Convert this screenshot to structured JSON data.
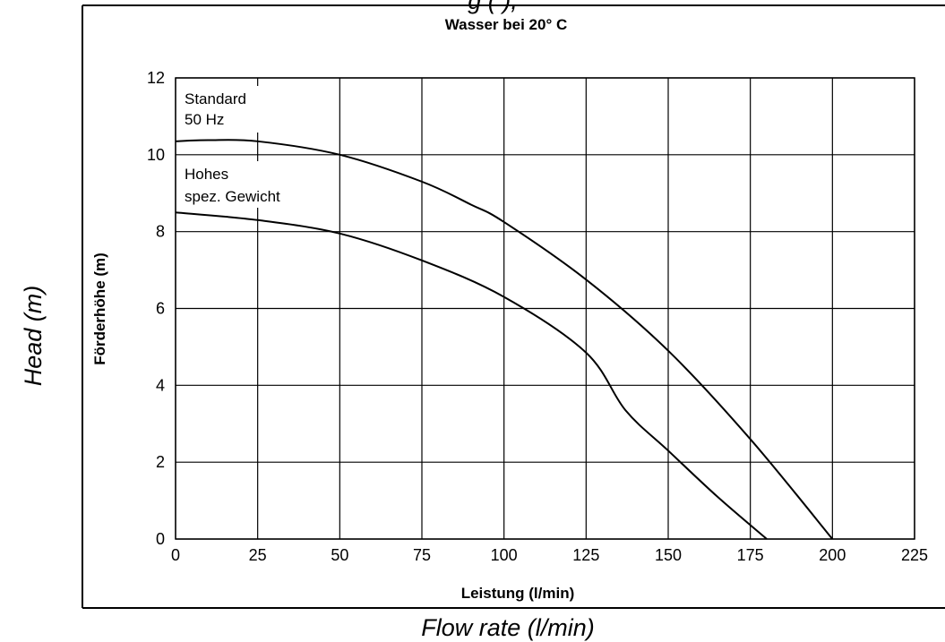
{
  "outer_labels": {
    "top_partial": "g        ( ),",
    "y_label": "Head (m)",
    "x_label": "Flow rate (l/min)"
  },
  "chart_data": {
    "type": "line",
    "title": "Wasser bei 20° C",
    "xlabel": "Leistung (l/min)",
    "ylabel": "Förderhöhe (m)",
    "xlim": [
      0,
      225
    ],
    "ylim": [
      0,
      12
    ],
    "xticks": [
      "0",
      "25",
      "50",
      "75",
      "100",
      "125",
      "150",
      "175",
      "200",
      "225"
    ],
    "yticks": [
      "0",
      "2",
      "4",
      "6",
      "8",
      "10",
      "12"
    ],
    "grid": true,
    "legend": "none",
    "series": [
      {
        "name": "Standard 50 Hz",
        "x": [
          0,
          10,
          25,
          50,
          75,
          90,
          100,
          125,
          150,
          175,
          200
        ],
        "y": [
          10.35,
          10.38,
          10.35,
          10.0,
          9.3,
          8.7,
          8.25,
          6.75,
          4.9,
          2.6,
          0.0
        ]
      },
      {
        "name": "Hohes spez. Gewicht",
        "x": [
          0,
          25,
          50,
          75,
          100,
          125,
          137,
          150,
          165,
          180
        ],
        "y": [
          8.5,
          8.3,
          7.95,
          7.25,
          6.3,
          4.85,
          3.35,
          2.3,
          1.1,
          0.0
        ]
      }
    ],
    "annotations": [
      {
        "text_lines": [
          "Standard",
          "50 Hz"
        ]
      },
      {
        "text_lines": [
          "Hohes",
          "spez. Gewicht"
        ]
      }
    ]
  }
}
